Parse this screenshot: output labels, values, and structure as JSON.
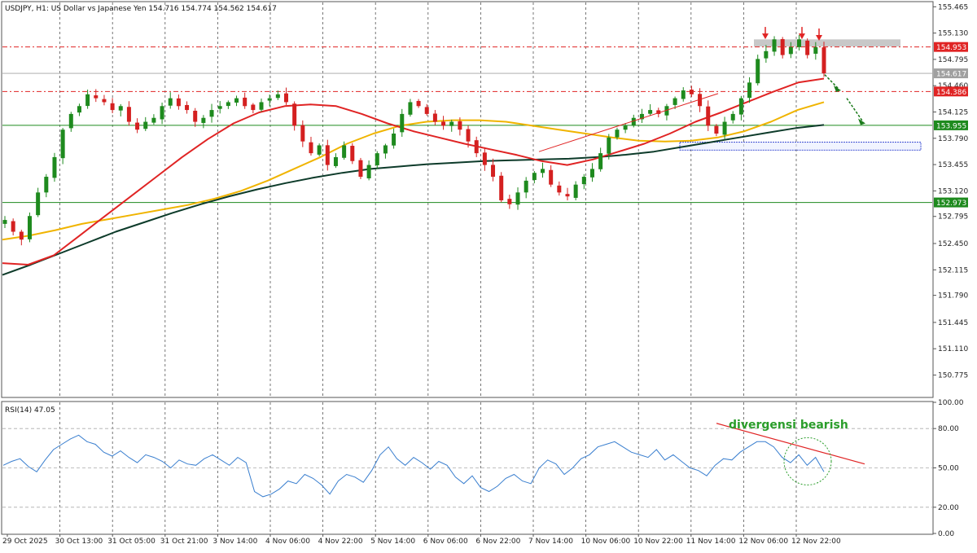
{
  "chart_data": [
    {
      "type": "candlestick",
      "title": "USDJPY, H1:  US Dollar vs Japanese Yen  154.716 154.774 154.562 154.617",
      "ylim": [
        150.5,
        155.52
      ],
      "x_tick_labels": [
        "29 Oct 2025",
        "30 Oct 13:00",
        "31 Oct 05:00",
        "31 Oct 21:00",
        "3 Nov 14:00",
        "4 Nov 06:00",
        "4 Nov 22:00",
        "5 Nov 14:00",
        "6 Nov 06:00",
        "6 Nov 22:00",
        "7 Nov 14:00",
        "10 Nov 06:00",
        "10 Nov 22:00",
        "11 Nov 14:00",
        "12 Nov 06:00",
        "12 Nov 22:00"
      ],
      "y_tick_labels": [
        "155.465",
        "155.130",
        "154.795",
        "154.460",
        "154.125",
        "153.790",
        "153.455",
        "153.120",
        "152.795",
        "152.450",
        "152.115",
        "151.790",
        "151.445",
        "151.110",
        "150.775"
      ],
      "price_tags": [
        {
          "label": "154.953",
          "value": 154.953,
          "color": "#e02424"
        },
        {
          "label": "154.617",
          "value": 154.617,
          "color": "#a0a0a0"
        },
        {
          "label": "154.386",
          "value": 154.386,
          "color": "#e02424"
        },
        {
          "label": "153.955",
          "value": 153.955,
          "color": "#1e8a1e"
        },
        {
          "label": "152.973",
          "value": 152.973,
          "color": "#1e8a1e"
        }
      ],
      "series": [
        {
          "kind": "price",
          "values": [
            152.75,
            152.6,
            152.5,
            152.8,
            153.1,
            153.3,
            153.55,
            153.9,
            154.1,
            154.2,
            154.35,
            154.3,
            154.25,
            154.15,
            154.2,
            154.0,
            153.9,
            154.0,
            154.05,
            154.2,
            154.3,
            154.2,
            154.15,
            154.0,
            154.05,
            154.15,
            154.2,
            154.25,
            154.3,
            154.2,
            154.15,
            154.25,
            154.3,
            154.35,
            154.25,
            153.95,
            153.75,
            153.6,
            153.7,
            153.45,
            153.55,
            153.7,
            153.5,
            153.3,
            153.45,
            153.6,
            153.7,
            153.85,
            154.1,
            154.25,
            154.2,
            154.1,
            154.0,
            153.95,
            154.0,
            153.9,
            153.75,
            153.6,
            153.45,
            153.3,
            153.0,
            152.95,
            153.1,
            153.25,
            153.35,
            153.4,
            153.2,
            153.1,
            153.05,
            153.2,
            153.3,
            153.4,
            153.6,
            153.8,
            153.9,
            153.95,
            154.05,
            154.1,
            154.15,
            154.1,
            154.2,
            154.3,
            154.4,
            154.35,
            154.2,
            153.95,
            153.85,
            154.0,
            154.1,
            154.3,
            154.5,
            154.8,
            154.9,
            155.05,
            154.85,
            154.95,
            155.05,
            154.85,
            154.95,
            154.617
          ]
        }
      ],
      "moving_averages": [
        {
          "period": 200,
          "color": "#0d3b2a",
          "values": [
            152.05,
            152.18,
            152.32,
            152.46,
            152.6,
            152.72,
            152.84,
            152.95,
            153.05,
            153.14,
            153.22,
            153.29,
            153.35,
            153.4,
            153.43,
            153.46,
            153.48,
            153.5,
            153.51,
            153.52,
            153.53,
            153.55,
            153.58,
            153.62,
            153.68,
            153.74,
            153.8,
            153.86,
            153.92,
            153.96
          ]
        },
        {
          "period": 100,
          "color": "#f0b400",
          "values": [
            152.5,
            152.55,
            152.62,
            152.7,
            152.76,
            152.82,
            152.88,
            152.94,
            153.02,
            153.12,
            153.25,
            153.4,
            153.55,
            153.72,
            153.85,
            153.95,
            154.0,
            154.02,
            154.02,
            154.0,
            153.95,
            153.9,
            153.85,
            153.8,
            153.76,
            153.75,
            153.76,
            153.8,
            153.88,
            154.0,
            154.15,
            154.25
          ]
        },
        {
          "period": 50,
          "color": "#e02424",
          "values": [
            152.2,
            152.18,
            152.3,
            152.55,
            152.8,
            153.05,
            153.3,
            153.55,
            153.78,
            153.98,
            154.12,
            154.2,
            154.22,
            154.2,
            154.1,
            153.98,
            153.88,
            153.8,
            153.72,
            153.65,
            153.58,
            153.5,
            153.45,
            153.52,
            153.62,
            153.72,
            153.85,
            154.0,
            154.12,
            154.25,
            154.38,
            154.5,
            154.55
          ]
        }
      ]
    },
    {
      "type": "line",
      "title": "RSI(14) 47.05",
      "ylim": [
        0,
        100
      ],
      "y_tick_labels": [
        "100.00",
        "80.00",
        "50.00",
        "20.00",
        "0.00"
      ],
      "series": [
        {
          "name": "RSI(14)",
          "values": [
            52,
            55,
            57,
            51,
            47,
            56,
            64,
            68,
            72,
            75,
            70,
            68,
            62,
            59,
            63,
            58,
            54,
            60,
            58,
            55,
            50,
            56,
            53,
            52,
            57,
            60,
            56,
            52,
            58,
            54,
            32,
            28,
            30,
            34,
            40,
            38,
            45,
            42,
            37,
            30,
            40,
            45,
            43,
            39,
            48,
            60,
            66,
            57,
            52,
            58,
            54,
            49,
            55,
            52,
            43,
            38,
            44,
            35,
            32,
            36,
            42,
            45,
            40,
            38,
            50,
            56,
            53,
            45,
            50,
            57,
            60,
            66,
            68,
            70,
            66,
            62,
            60,
            58,
            64,
            56,
            60,
            55,
            50,
            48,
            44,
            52,
            57,
            56,
            62,
            66,
            70,
            70,
            66,
            58,
            54,
            60,
            52,
            58,
            47
          ]
        }
      ]
    }
  ],
  "annotations": {
    "divergence_label": "divergensi bearish"
  },
  "colors": {
    "bull": "#1e8a1e",
    "bear": "#d42020",
    "resistance": "#e02424",
    "support": "#1e8a1e",
    "rsi_line": "#3a7fcf",
    "zone_gray": "#c8c8c8",
    "zone_blue": "#2a3fcf",
    "arrow_red": "#e02424",
    "arrow_green": "#1a7a1a"
  }
}
